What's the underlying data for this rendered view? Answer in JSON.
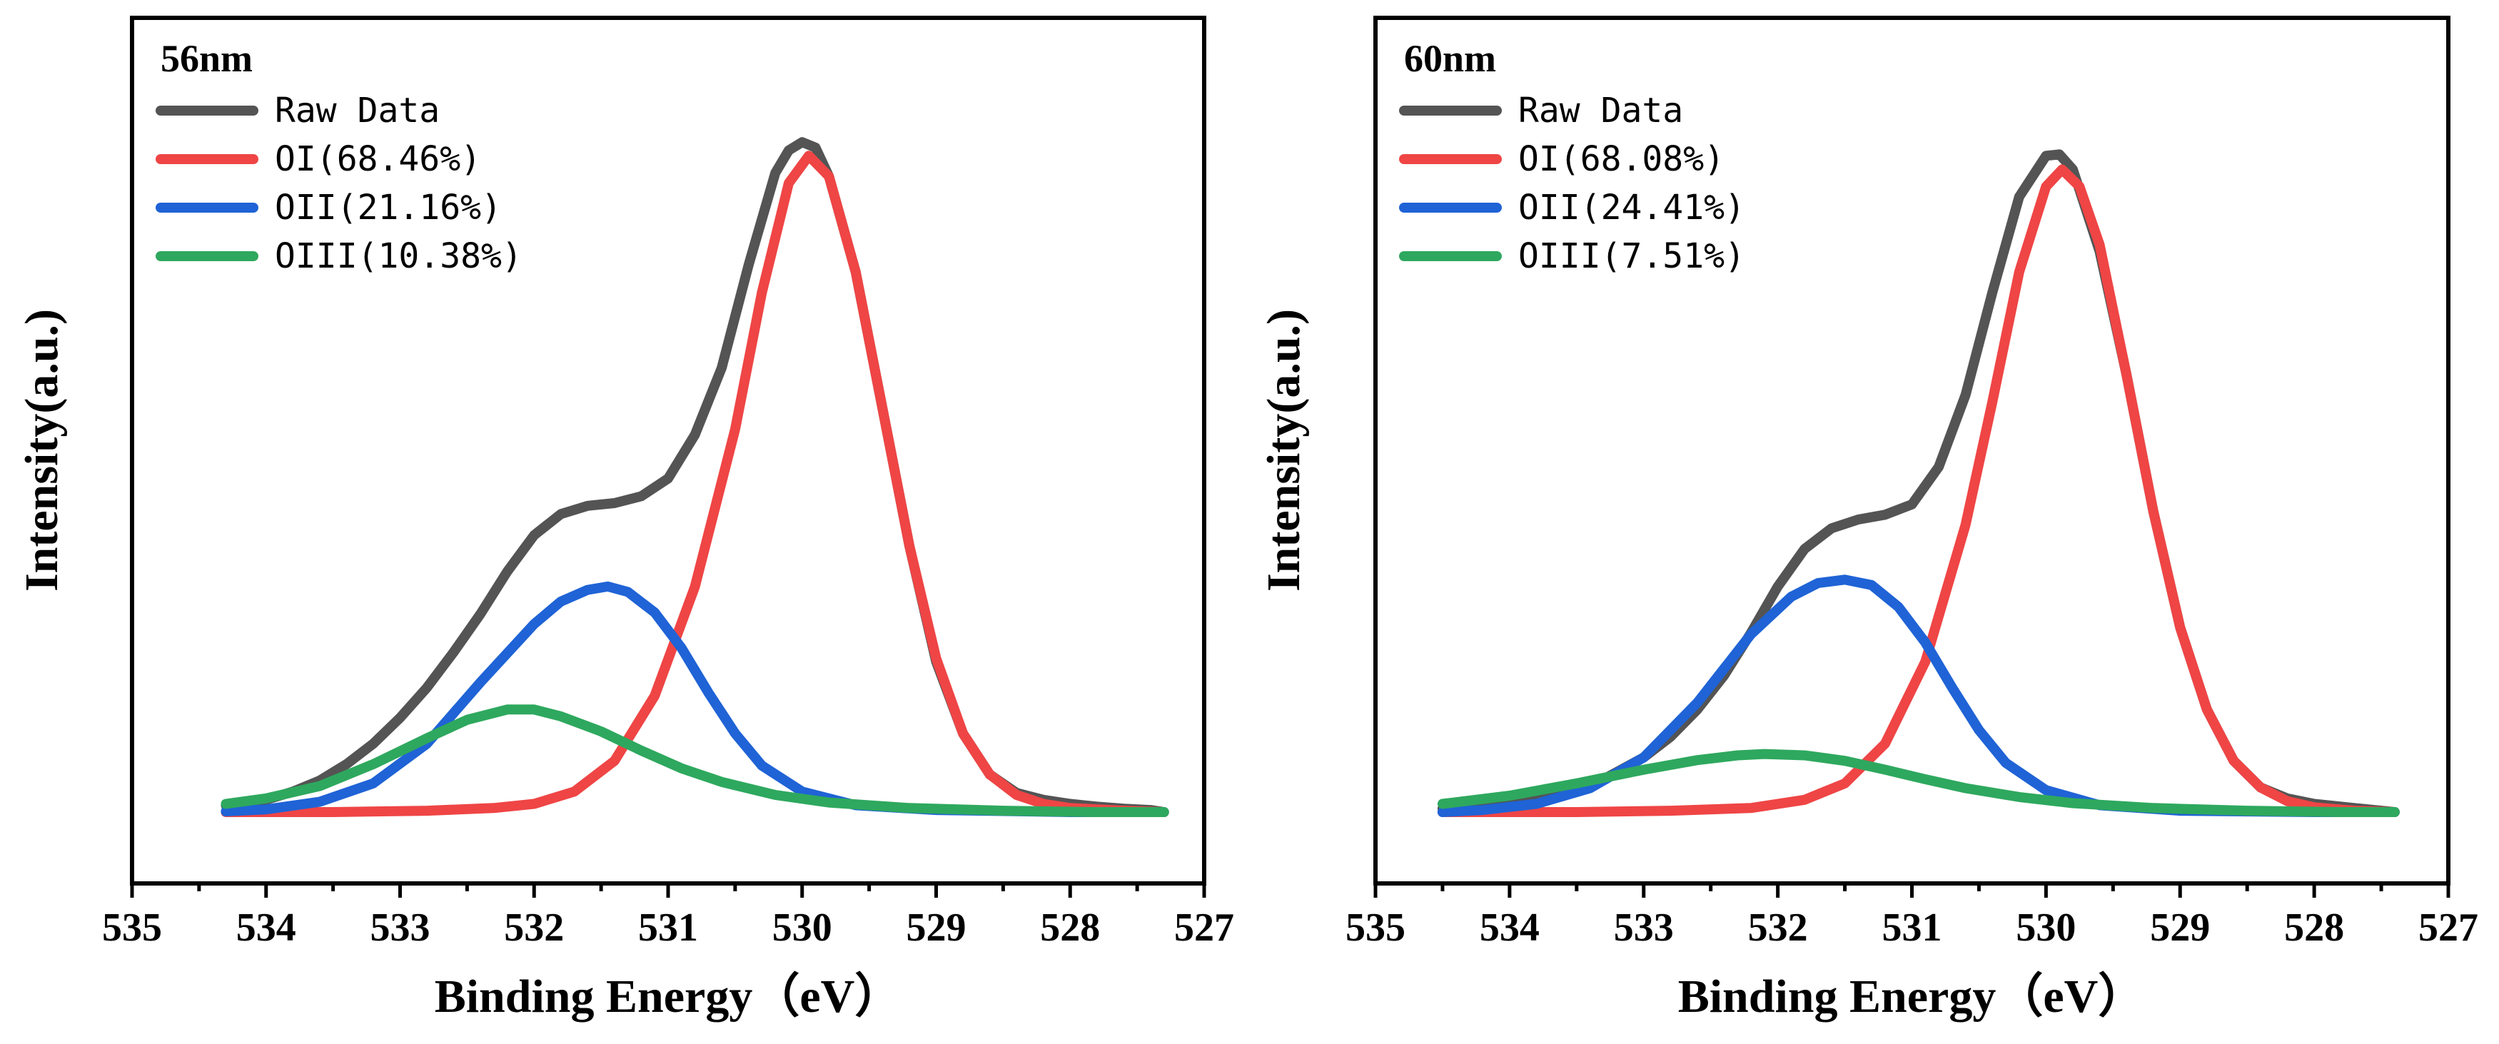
{
  "chart_data": [
    {
      "type": "line",
      "title": "56nm",
      "xlabel": "Binding Energy（eV）",
      "ylabel": "Intensity(a.u.)",
      "xlim": [
        535,
        527
      ],
      "xticks": [
        "535",
        "534",
        "533",
        "532",
        "531",
        "530",
        "529",
        "528",
        "527"
      ],
      "legend_position": "top-left",
      "series": [
        {
          "name": "Raw Data",
          "color": "#545454",
          "x": [
            534.3,
            534.0,
            533.8,
            533.6,
            533.4,
            533.2,
            533.0,
            532.8,
            532.6,
            532.4,
            532.2,
            532.0,
            531.8,
            531.6,
            531.4,
            531.2,
            531.0,
            530.8,
            530.6,
            530.4,
            530.2,
            530.1,
            530.0,
            529.9,
            529.8,
            529.6,
            529.4,
            529.2,
            529.0,
            528.8,
            528.6,
            528.4,
            528.2,
            528.0,
            527.8,
            527.6,
            527.4,
            527.3
          ],
          "y": [
            0.01,
            0.018,
            0.03,
            0.046,
            0.07,
            0.1,
            0.138,
            0.182,
            0.234,
            0.29,
            0.352,
            0.405,
            0.436,
            0.448,
            0.452,
            0.462,
            0.488,
            0.552,
            0.65,
            0.8,
            0.935,
            0.968,
            0.98,
            0.972,
            0.93,
            0.79,
            0.59,
            0.39,
            0.22,
            0.115,
            0.055,
            0.028,
            0.018,
            0.012,
            0.008,
            0.005,
            0.003,
            0.0
          ]
        },
        {
          "name": "OI(68.46%)",
          "color": "#ef4545",
          "x": [
            534.3,
            533.5,
            532.8,
            532.3,
            532.0,
            531.7,
            531.4,
            531.1,
            530.8,
            530.5,
            530.3,
            530.1,
            529.95,
            529.8,
            529.6,
            529.4,
            529.2,
            529.0,
            528.8,
            528.6,
            528.4,
            528.2,
            528.0,
            527.6,
            527.3
          ],
          "y": [
            0.0,
            0.0,
            0.002,
            0.006,
            0.012,
            0.03,
            0.075,
            0.17,
            0.33,
            0.56,
            0.76,
            0.92,
            0.96,
            0.93,
            0.79,
            0.59,
            0.39,
            0.225,
            0.115,
            0.055,
            0.025,
            0.012,
            0.006,
            0.002,
            0.0
          ]
        },
        {
          "name": "OII(21.16%)",
          "color": "#1f63d6",
          "x": [
            534.3,
            534.0,
            533.6,
            533.2,
            532.8,
            532.4,
            532.0,
            531.8,
            531.6,
            531.45,
            531.3,
            531.1,
            530.9,
            530.7,
            530.5,
            530.3,
            530.0,
            529.6,
            529.0,
            528.0,
            527.3
          ],
          "y": [
            0.001,
            0.004,
            0.015,
            0.042,
            0.1,
            0.19,
            0.275,
            0.308,
            0.325,
            0.33,
            0.322,
            0.292,
            0.24,
            0.175,
            0.115,
            0.068,
            0.03,
            0.01,
            0.003,
            0.0,
            0.0
          ]
        },
        {
          "name": "OIII(10.38%)",
          "color": "#2ea85e",
          "x": [
            534.3,
            534.0,
            533.6,
            533.2,
            532.8,
            532.5,
            532.2,
            532.0,
            531.8,
            531.5,
            531.2,
            530.9,
            530.6,
            530.2,
            529.8,
            529.2,
            528.5,
            527.8,
            527.3
          ],
          "y": [
            0.012,
            0.02,
            0.038,
            0.07,
            0.108,
            0.135,
            0.15,
            0.15,
            0.14,
            0.118,
            0.09,
            0.064,
            0.044,
            0.025,
            0.014,
            0.006,
            0.002,
            0.0,
            0.0
          ]
        }
      ]
    },
    {
      "type": "line",
      "title": "60nm",
      "xlabel": "Binding Energy（eV）",
      "ylabel": "Intensity(a.u.)",
      "xlim": [
        535,
        527
      ],
      "xticks": [
        "535",
        "534",
        "533",
        "532",
        "531",
        "530",
        "529",
        "528",
        "527"
      ],
      "legend_position": "top-left",
      "series": [
        {
          "name": "Raw Data",
          "color": "#545454",
          "x": [
            534.5,
            534.2,
            533.9,
            533.6,
            533.3,
            533.0,
            532.8,
            532.6,
            532.4,
            532.2,
            532.0,
            531.8,
            531.6,
            531.4,
            531.2,
            531.0,
            530.8,
            530.6,
            530.4,
            530.2,
            530.0,
            529.9,
            529.8,
            529.6,
            529.4,
            529.2,
            529.0,
            528.8,
            528.6,
            528.4,
            528.2,
            528.0,
            527.7,
            527.4
          ],
          "y": [
            0.005,
            0.01,
            0.018,
            0.03,
            0.048,
            0.08,
            0.11,
            0.15,
            0.2,
            0.262,
            0.33,
            0.385,
            0.415,
            0.428,
            0.435,
            0.45,
            0.505,
            0.61,
            0.76,
            0.9,
            0.96,
            0.962,
            0.94,
            0.82,
            0.64,
            0.44,
            0.27,
            0.15,
            0.075,
            0.036,
            0.02,
            0.012,
            0.006,
            0.0
          ]
        },
        {
          "name": "OI(68.08%)",
          "color": "#ef4545",
          "x": [
            534.5,
            533.5,
            532.8,
            532.2,
            531.8,
            531.5,
            531.2,
            530.9,
            530.6,
            530.4,
            530.2,
            530.0,
            529.88,
            529.75,
            529.6,
            529.4,
            529.2,
            529.0,
            528.8,
            528.6,
            528.4,
            528.2,
            528.0,
            527.7,
            527.4
          ],
          "y": [
            0.0,
            0.0,
            0.002,
            0.006,
            0.018,
            0.042,
            0.1,
            0.22,
            0.42,
            0.6,
            0.79,
            0.915,
            0.94,
            0.915,
            0.83,
            0.64,
            0.44,
            0.27,
            0.15,
            0.075,
            0.036,
            0.016,
            0.007,
            0.002,
            0.0
          ]
        },
        {
          "name": "OII(24.41%)",
          "color": "#1f63d6",
          "x": [
            534.5,
            534.2,
            533.8,
            533.4,
            533.0,
            532.6,
            532.2,
            531.9,
            531.7,
            531.5,
            531.3,
            531.1,
            530.9,
            530.7,
            530.5,
            530.3,
            530.0,
            529.6,
            529.0,
            528.0,
            527.4
          ],
          "y": [
            0.0,
            0.003,
            0.012,
            0.035,
            0.08,
            0.16,
            0.26,
            0.315,
            0.335,
            0.34,
            0.332,
            0.3,
            0.248,
            0.182,
            0.12,
            0.072,
            0.032,
            0.01,
            0.002,
            0.0,
            0.0
          ]
        },
        {
          "name": "OIII(7.51%)",
          "color": "#2ea85e",
          "x": [
            534.5,
            534.0,
            533.5,
            533.0,
            532.6,
            532.3,
            532.1,
            531.8,
            531.5,
            531.2,
            530.9,
            530.6,
            530.2,
            529.8,
            529.2,
            528.5,
            527.8,
            527.4
          ],
          "y": [
            0.012,
            0.024,
            0.042,
            0.062,
            0.076,
            0.083,
            0.085,
            0.083,
            0.075,
            0.062,
            0.048,
            0.035,
            0.022,
            0.013,
            0.006,
            0.002,
            0.0,
            0.0
          ]
        }
      ]
    }
  ]
}
